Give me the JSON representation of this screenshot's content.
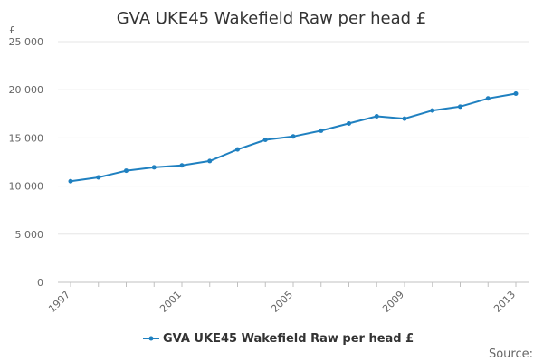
{
  "colors": {
    "series": "#1f80c0"
  },
  "chart_data": {
    "type": "line",
    "title": "GVA UKE45 Wakefield Raw per head £",
    "ylabel": "£",
    "xlabel": "",
    "x": [
      1997,
      1998,
      1999,
      2000,
      2001,
      2002,
      2003,
      2004,
      2005,
      2006,
      2007,
      2008,
      2009,
      2010,
      2011,
      2012,
      2013
    ],
    "series": [
      {
        "name": "GVA UKE45 Wakefield Raw per head £",
        "values": [
          10500,
          10900,
          11600,
          11950,
          12150,
          12600,
          13800,
          14800,
          15150,
          15750,
          16500,
          17250,
          17000,
          17850,
          18250,
          19100,
          19600
        ]
      }
    ],
    "ylim": [
      0,
      25000
    ],
    "xlim": [
      1997,
      2013
    ],
    "yticks": [
      0,
      5000,
      10000,
      15000,
      20000,
      25000
    ],
    "ytick_labels": [
      "0",
      "5 000",
      "10 000",
      "15 000",
      "20 000",
      "25 000"
    ],
    "xticks": [
      1997,
      2001,
      2005,
      2009,
      2013
    ],
    "xtick_labels": [
      "1997",
      "2001",
      "2005",
      "2009",
      "2013"
    ],
    "grid": true,
    "legend_position": "bottom-center"
  },
  "source_label": "Source:"
}
